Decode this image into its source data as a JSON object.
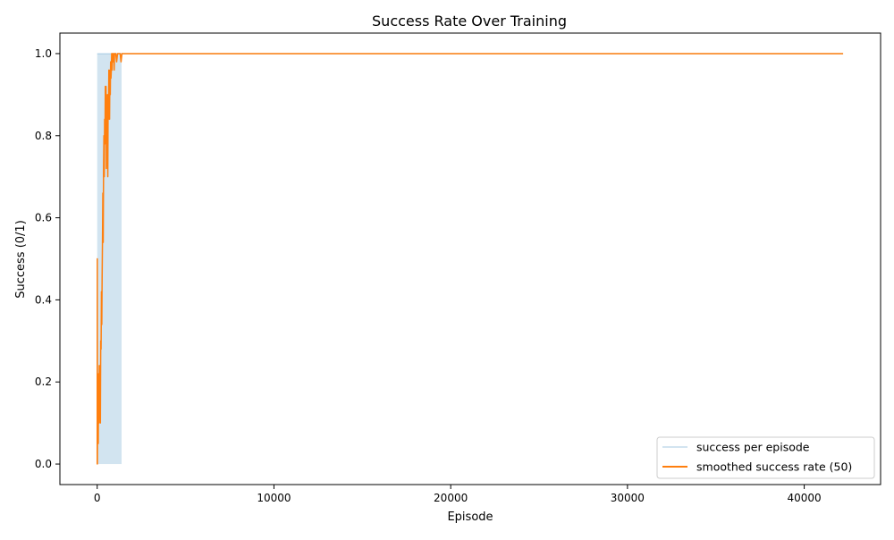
{
  "chart_data": {
    "type": "line",
    "title": "Success Rate Over Training",
    "xlabel": "Episode",
    "ylabel": "Success (0/1)",
    "xlim": [
      -2110,
      44320
    ],
    "ylim": [
      -0.05,
      1.05
    ],
    "grid": false,
    "legend_position": "lower-right",
    "x_ticks": [
      {
        "value": 0,
        "label": "0"
      },
      {
        "value": 10000,
        "label": "10000"
      },
      {
        "value": 20000,
        "label": "20000"
      },
      {
        "value": 30000,
        "label": "30000"
      },
      {
        "value": 40000,
        "label": "40000"
      }
    ],
    "y_ticks": [
      {
        "value": 0.0,
        "label": "0.0"
      },
      {
        "value": 0.2,
        "label": "0.2"
      },
      {
        "value": 0.4,
        "label": "0.4"
      },
      {
        "value": 0.6,
        "label": "0.6"
      },
      {
        "value": 0.8,
        "label": "0.8"
      },
      {
        "value": 1.0,
        "label": "1.0"
      }
    ],
    "series": [
      {
        "name": "success per episode",
        "color": "#1f77b4",
        "opacity": 0.2,
        "style": "binary-fill",
        "dense_until": 1380,
        "x": [
          0,
          1200,
          1380,
          42200
        ],
        "y": [
          1,
          1,
          1,
          1
        ]
      },
      {
        "name": "smoothed success rate (50)",
        "color": "#ff7f0e",
        "x": [
          0,
          5,
          10,
          25,
          40,
          60,
          80,
          100,
          120,
          140,
          160,
          180,
          200,
          220,
          240,
          260,
          280,
          300,
          320,
          340,
          360,
          380,
          400,
          420,
          440,
          460,
          480,
          500,
          520,
          540,
          560,
          580,
          600,
          620,
          640,
          660,
          680,
          700,
          720,
          740,
          760,
          780,
          800,
          820,
          840,
          860,
          880,
          900,
          920,
          940,
          960,
          980,
          1000,
          1050,
          1100,
          1150,
          1200,
          1250,
          1300,
          1350,
          1400,
          2000,
          10000,
          20000,
          30000,
          42200
        ],
        "y": [
          0.0,
          0.5,
          0.0,
          0.2,
          0.1,
          0.05,
          0.22,
          0.1,
          0.24,
          0.12,
          0.2,
          0.1,
          0.3,
          0.28,
          0.42,
          0.34,
          0.46,
          0.55,
          0.66,
          0.54,
          0.72,
          0.8,
          0.7,
          0.84,
          0.78,
          0.92,
          0.86,
          0.92,
          0.72,
          0.84,
          0.76,
          0.9,
          0.7,
          0.9,
          0.84,
          0.96,
          0.88,
          0.84,
          0.96,
          0.9,
          0.98,
          0.94,
          0.96,
          1.0,
          0.96,
          1.0,
          1.0,
          0.98,
          1.0,
          1.0,
          0.96,
          1.0,
          1.0,
          1.0,
          0.98,
          1.0,
          1.0,
          1.0,
          1.0,
          0.98,
          1.0,
          1.0,
          1.0,
          1.0,
          1.0,
          1.0
        ]
      }
    ]
  }
}
